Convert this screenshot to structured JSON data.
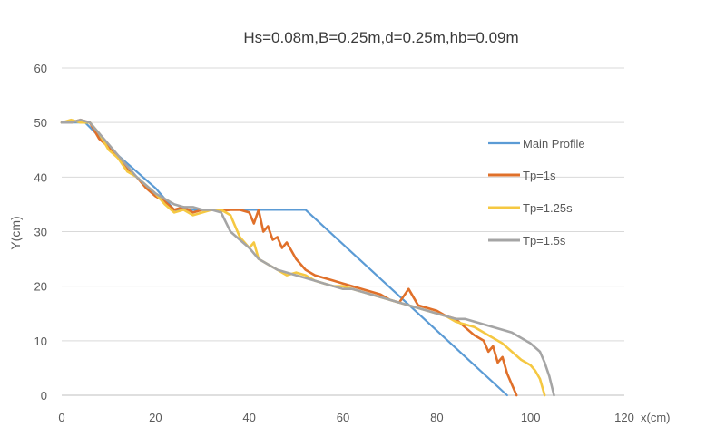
{
  "chart_data": {
    "type": "line",
    "title": "Hs=0.08m,B=0.25m,d=0.25m,hb=0.09m",
    "ylabel": "Y(cm)",
    "xlabel": "x(cm)",
    "xlim": [
      0,
      120
    ],
    "ylim": [
      0,
      60
    ],
    "xticks": [
      0,
      20,
      40,
      60,
      80,
      100,
      120
    ],
    "yticks": [
      0,
      10,
      20,
      30,
      40,
      50,
      60
    ],
    "grid": "horizontal",
    "legend_position": "right",
    "series": [
      {
        "name": "Main Profile",
        "color": "#5b9bd5",
        "x": [
          0,
          2,
          5,
          12,
          20,
          24,
          30,
          52,
          95
        ],
        "y": [
          50,
          50,
          50,
          44,
          38,
          34,
          34,
          34,
          0
        ]
      },
      {
        "name": "Tp=1s",
        "color": "#e0702a",
        "x": [
          0,
          2,
          4,
          6,
          8,
          10,
          12,
          14,
          16,
          18,
          20,
          22,
          24,
          26,
          28,
          30,
          32,
          34,
          36,
          38,
          40,
          41,
          42,
          43,
          44,
          45,
          46,
          47,
          48,
          49,
          50,
          52,
          54,
          56,
          58,
          60,
          62,
          64,
          66,
          68,
          70,
          72,
          74,
          76,
          78,
          80,
          82,
          84,
          86,
          88,
          90,
          91,
          92,
          93,
          94,
          95,
          96,
          97
        ],
        "y": [
          50,
          50,
          50.5,
          50,
          47,
          45.5,
          43.5,
          41.5,
          40,
          38,
          36.5,
          35.5,
          34,
          34.5,
          33.5,
          34,
          34,
          33.8,
          34,
          34,
          33.5,
          31.5,
          34,
          30,
          31,
          28.5,
          29,
          27,
          28,
          26.5,
          25,
          23,
          22,
          21.5,
          21,
          20.5,
          20,
          19.5,
          19,
          18.5,
          17.5,
          17,
          19.5,
          16.5,
          16,
          15.5,
          14.5,
          14,
          12.5,
          11,
          10,
          8,
          9,
          6,
          7,
          4,
          2,
          0
        ]
      },
      {
        "name": "Tp=1.25s",
        "color": "#f5c842",
        "x": [
          0,
          2,
          4,
          6,
          8,
          10,
          12,
          14,
          16,
          18,
          20,
          22,
          24,
          26,
          28,
          30,
          32,
          34,
          36,
          38,
          40,
          41,
          42,
          44,
          46,
          48,
          50,
          52,
          54,
          56,
          58,
          60,
          62,
          64,
          66,
          68,
          70,
          72,
          74,
          76,
          78,
          80,
          82,
          84,
          86,
          88,
          90,
          92,
          94,
          96,
          98,
          100,
          101,
          102,
          103
        ],
        "y": [
          50,
          50.5,
          50,
          50,
          48,
          45,
          43.5,
          41,
          40,
          38.5,
          37,
          35,
          33.5,
          34,
          33,
          33.5,
          34,
          34,
          33,
          29,
          27,
          28,
          25,
          24,
          23,
          22,
          22.5,
          22,
          21,
          20.5,
          20,
          20,
          19.5,
          19,
          18.5,
          18,
          17.5,
          17,
          16.5,
          16,
          15.5,
          15,
          14.5,
          13.5,
          13,
          12.5,
          11.5,
          10.5,
          9.5,
          8,
          6.5,
          5.5,
          4.5,
          3,
          0
        ]
      },
      {
        "name": "Tp=1.5s",
        "color": "#a5a5a5",
        "x": [
          0,
          2,
          4,
          6,
          8,
          10,
          12,
          14,
          16,
          18,
          20,
          22,
          24,
          26,
          28,
          30,
          32,
          34,
          36,
          38,
          40,
          42,
          44,
          46,
          48,
          50,
          52,
          54,
          56,
          58,
          60,
          62,
          64,
          66,
          68,
          70,
          72,
          74,
          76,
          78,
          80,
          82,
          84,
          86,
          88,
          90,
          92,
          94,
          96,
          98,
          100,
          102,
          103,
          104,
          105
        ],
        "y": [
          50,
          50,
          50.5,
          50,
          48,
          46,
          44,
          42,
          40,
          38.5,
          37,
          36,
          35,
          34.5,
          34.5,
          34,
          34,
          33.5,
          30,
          28.5,
          27,
          25,
          24,
          23,
          22.5,
          22,
          21.5,
          21,
          20.5,
          20,
          19.5,
          19.5,
          19,
          18.5,
          18,
          17.5,
          17,
          16.5,
          16,
          15.5,
          15,
          14.5,
          14,
          14,
          13.5,
          13,
          12.5,
          12,
          11.5,
          10.5,
          9.5,
          8,
          6,
          3.5,
          0
        ]
      }
    ]
  }
}
